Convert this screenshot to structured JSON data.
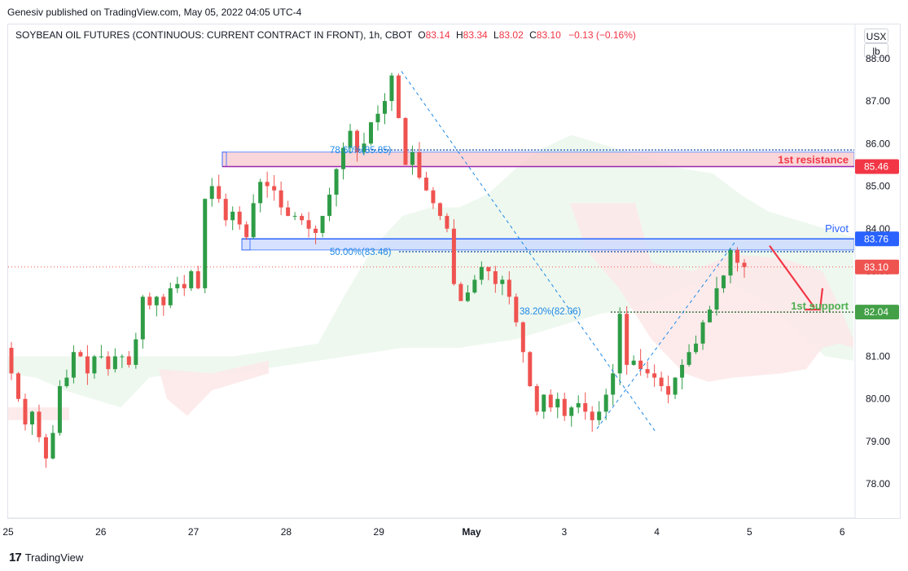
{
  "publisher_line": "Genesiv published on TradingView.com, May 05, 2022 04:05 UTC-4",
  "header": {
    "symbol": "SOYBEAN OIL FUTURES (CONTINUOUS: CURRENT CONTRACT IN FRONT), 1h, CBOT",
    "o_label": "O",
    "o_value": "83.14",
    "h_label": "H",
    "h_value": "83.34",
    "l_label": "L",
    "l_value": "83.02",
    "c_label": "C",
    "c_value": "83.10",
    "change": "−0.13 (−0.16%)"
  },
  "currency": "USX",
  "unit": "lb",
  "footer_logo": "TradingView",
  "colors": {
    "up": "#26a69a",
    "up_fill": "#2e9c46",
    "down": "#ef5350",
    "resistance": "#f23645",
    "pivot": "#2962ff",
    "support": "#4caf50",
    "fib": "#1e88e5"
  },
  "chart_data": {
    "type": "candlestick",
    "title": "SOYBEAN OIL FUTURES (CONTINUOUS: CURRENT CONTRACT IN FRONT), 1h, CBOT",
    "ylim": [
      77.2,
      88.8
    ],
    "y_ticks": [
      "78.00",
      "79.00",
      "80.00",
      "81.00",
      "82.00",
      "83.00",
      "84.00",
      "85.00",
      "86.00",
      "87.00",
      "88.00"
    ],
    "x_ticks": [
      "25",
      "26",
      "27",
      "28",
      "29",
      "May",
      "3",
      "4",
      "5",
      "6"
    ],
    "close_path": [
      80.6,
      80.0,
      79.4,
      79.7,
      79.1,
      78.6,
      79.2,
      80.3,
      80.5,
      81.1,
      81.0,
      80.6,
      81.0,
      81.0,
      80.7,
      81.0,
      81.0,
      80.8,
      81.4,
      82.4,
      82.2,
      82.4,
      82.2,
      82.6,
      82.7,
      82.6,
      83.0,
      82.6,
      84.7,
      85.0,
      84.7,
      84.2,
      84.4,
      84.1,
      83.8,
      84.6,
      85.1,
      85.0,
      84.9,
      84.5,
      84.3,
      84.3,
      84.2,
      84.0,
      83.9,
      84.3,
      84.8,
      85.4,
      85.9,
      86.3,
      85.8,
      86.0,
      86.5,
      86.7,
      87.0,
      87.6,
      86.6,
      85.5,
      85.8,
      85.2,
      84.9,
      84.6,
      84.3,
      84.0,
      82.7,
      82.3,
      82.5,
      82.8,
      83.1,
      83.0,
      82.7,
      82.8,
      82.4,
      81.8,
      81.1,
      80.3,
      79.7,
      80.1,
      79.8,
      80.0,
      79.6,
      79.8,
      79.9,
      79.7,
      79.5,
      79.7,
      80.1,
      80.6,
      82.0,
      80.8,
      80.9,
      80.7,
      80.6,
      80.5,
      80.3,
      80.1,
      80.5,
      80.8,
      81.1,
      81.3,
      81.8,
      82.1,
      82.6,
      82.9,
      83.5,
      83.2,
      83.1
    ],
    "volatility": 0.28,
    "levels": [
      {
        "name": "1st resistance",
        "label": "1st resistance",
        "value": 85.46,
        "tag": "85.46"
      },
      {
        "name": "Pivot",
        "label": "Pivot",
        "value": 83.76,
        "tag": "83.76"
      },
      {
        "name": "1st support",
        "label": "1st support",
        "value": 82.04,
        "tag": "82.04"
      }
    ],
    "last_price": {
      "value": 83.1,
      "tag": "83.10"
    },
    "fib_labels": [
      {
        "text": "78.60%(85.85)",
        "value": 85.85
      },
      {
        "text": "50.00%(83.46)",
        "value": 83.46
      },
      {
        "text": "38.20%(82.06)",
        "value": 82.06
      }
    ],
    "zones": [
      {
        "name": "resistance-zone",
        "top": 85.8,
        "bottom": 85.46
      },
      {
        "name": "pivot-zone",
        "top": 83.76,
        "bottom": 83.5
      }
    ],
    "cloud": {
      "green_upper": [
        81.0,
        81.0,
        81.0,
        81.0,
        81.0,
        81.0,
        81.0,
        81.0,
        81.0,
        81.1,
        81.2,
        81.3,
        82.5,
        83.6,
        84.3,
        84.5,
        84.5,
        84.8,
        85.4,
        85.9,
        86.2,
        86.0,
        85.8,
        85.6,
        85.4,
        85.3,
        84.8,
        84.4,
        84.2,
        84.0,
        83.8
      ],
      "red_lower": [
        80.6,
        80.5,
        80.2,
        80.0,
        79.8,
        80.5,
        80.6,
        80.6,
        80.6,
        80.7,
        80.8,
        80.9,
        81.0,
        81.1,
        81.2,
        81.2,
        81.2,
        81.3,
        81.4,
        81.6,
        81.8,
        82.0,
        82.1,
        82.3,
        82.6,
        82.8,
        82.6,
        82.2,
        81.6,
        81.0,
        80.9
      ]
    }
  }
}
